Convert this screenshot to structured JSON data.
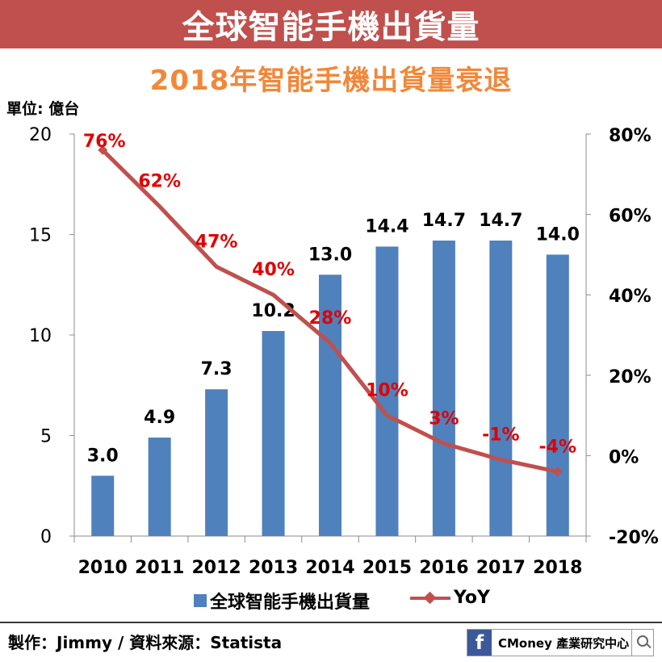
{
  "header": {
    "title": "全球智能手機出貨量",
    "subtitle": "2018年智能手機出貨量衰退",
    "unit_label": "單位: 億台"
  },
  "chart_data": {
    "type": "bar",
    "categories": [
      "2010",
      "2011",
      "2012",
      "2013",
      "2014",
      "2015",
      "2016",
      "2017",
      "2018"
    ],
    "series": [
      {
        "name": "全球智能手機出貨量",
        "type": "bar",
        "axis": "left",
        "color": "#4f81bd",
        "values": [
          3.0,
          4.9,
          7.3,
          10.2,
          13.0,
          14.4,
          14.7,
          14.7,
          14.0
        ],
        "labels": [
          "3.0",
          "4.9",
          "7.3",
          "10.2",
          "13.0",
          "14.4",
          "14.7",
          "14.7",
          "14.0"
        ]
      },
      {
        "name": "YoY",
        "type": "line",
        "axis": "right",
        "color": "#c0504d",
        "values": [
          76,
          62,
          47,
          40,
          28,
          10,
          3,
          -1,
          -4
        ],
        "labels": [
          "76%",
          "62%",
          "47%",
          "40%",
          "28%",
          "10%",
          "3%",
          "-1%",
          "-4%"
        ]
      }
    ],
    "y_left": {
      "min": 0,
      "max": 20,
      "ticks": [
        "0",
        "5",
        "10",
        "15",
        "20"
      ]
    },
    "y_right": {
      "min": -20,
      "max": 80,
      "ticks": [
        "-20%",
        "0%",
        "20%",
        "40%",
        "60%",
        "80%"
      ]
    },
    "grid": false,
    "legend_position": "bottom"
  },
  "footer": {
    "credit": "製作：Jimmy / 資料來源：Statista",
    "brand_icon": "facebook-icon",
    "brand_name": "CMoney 產業研究中心",
    "search_icon": "search-icon"
  }
}
